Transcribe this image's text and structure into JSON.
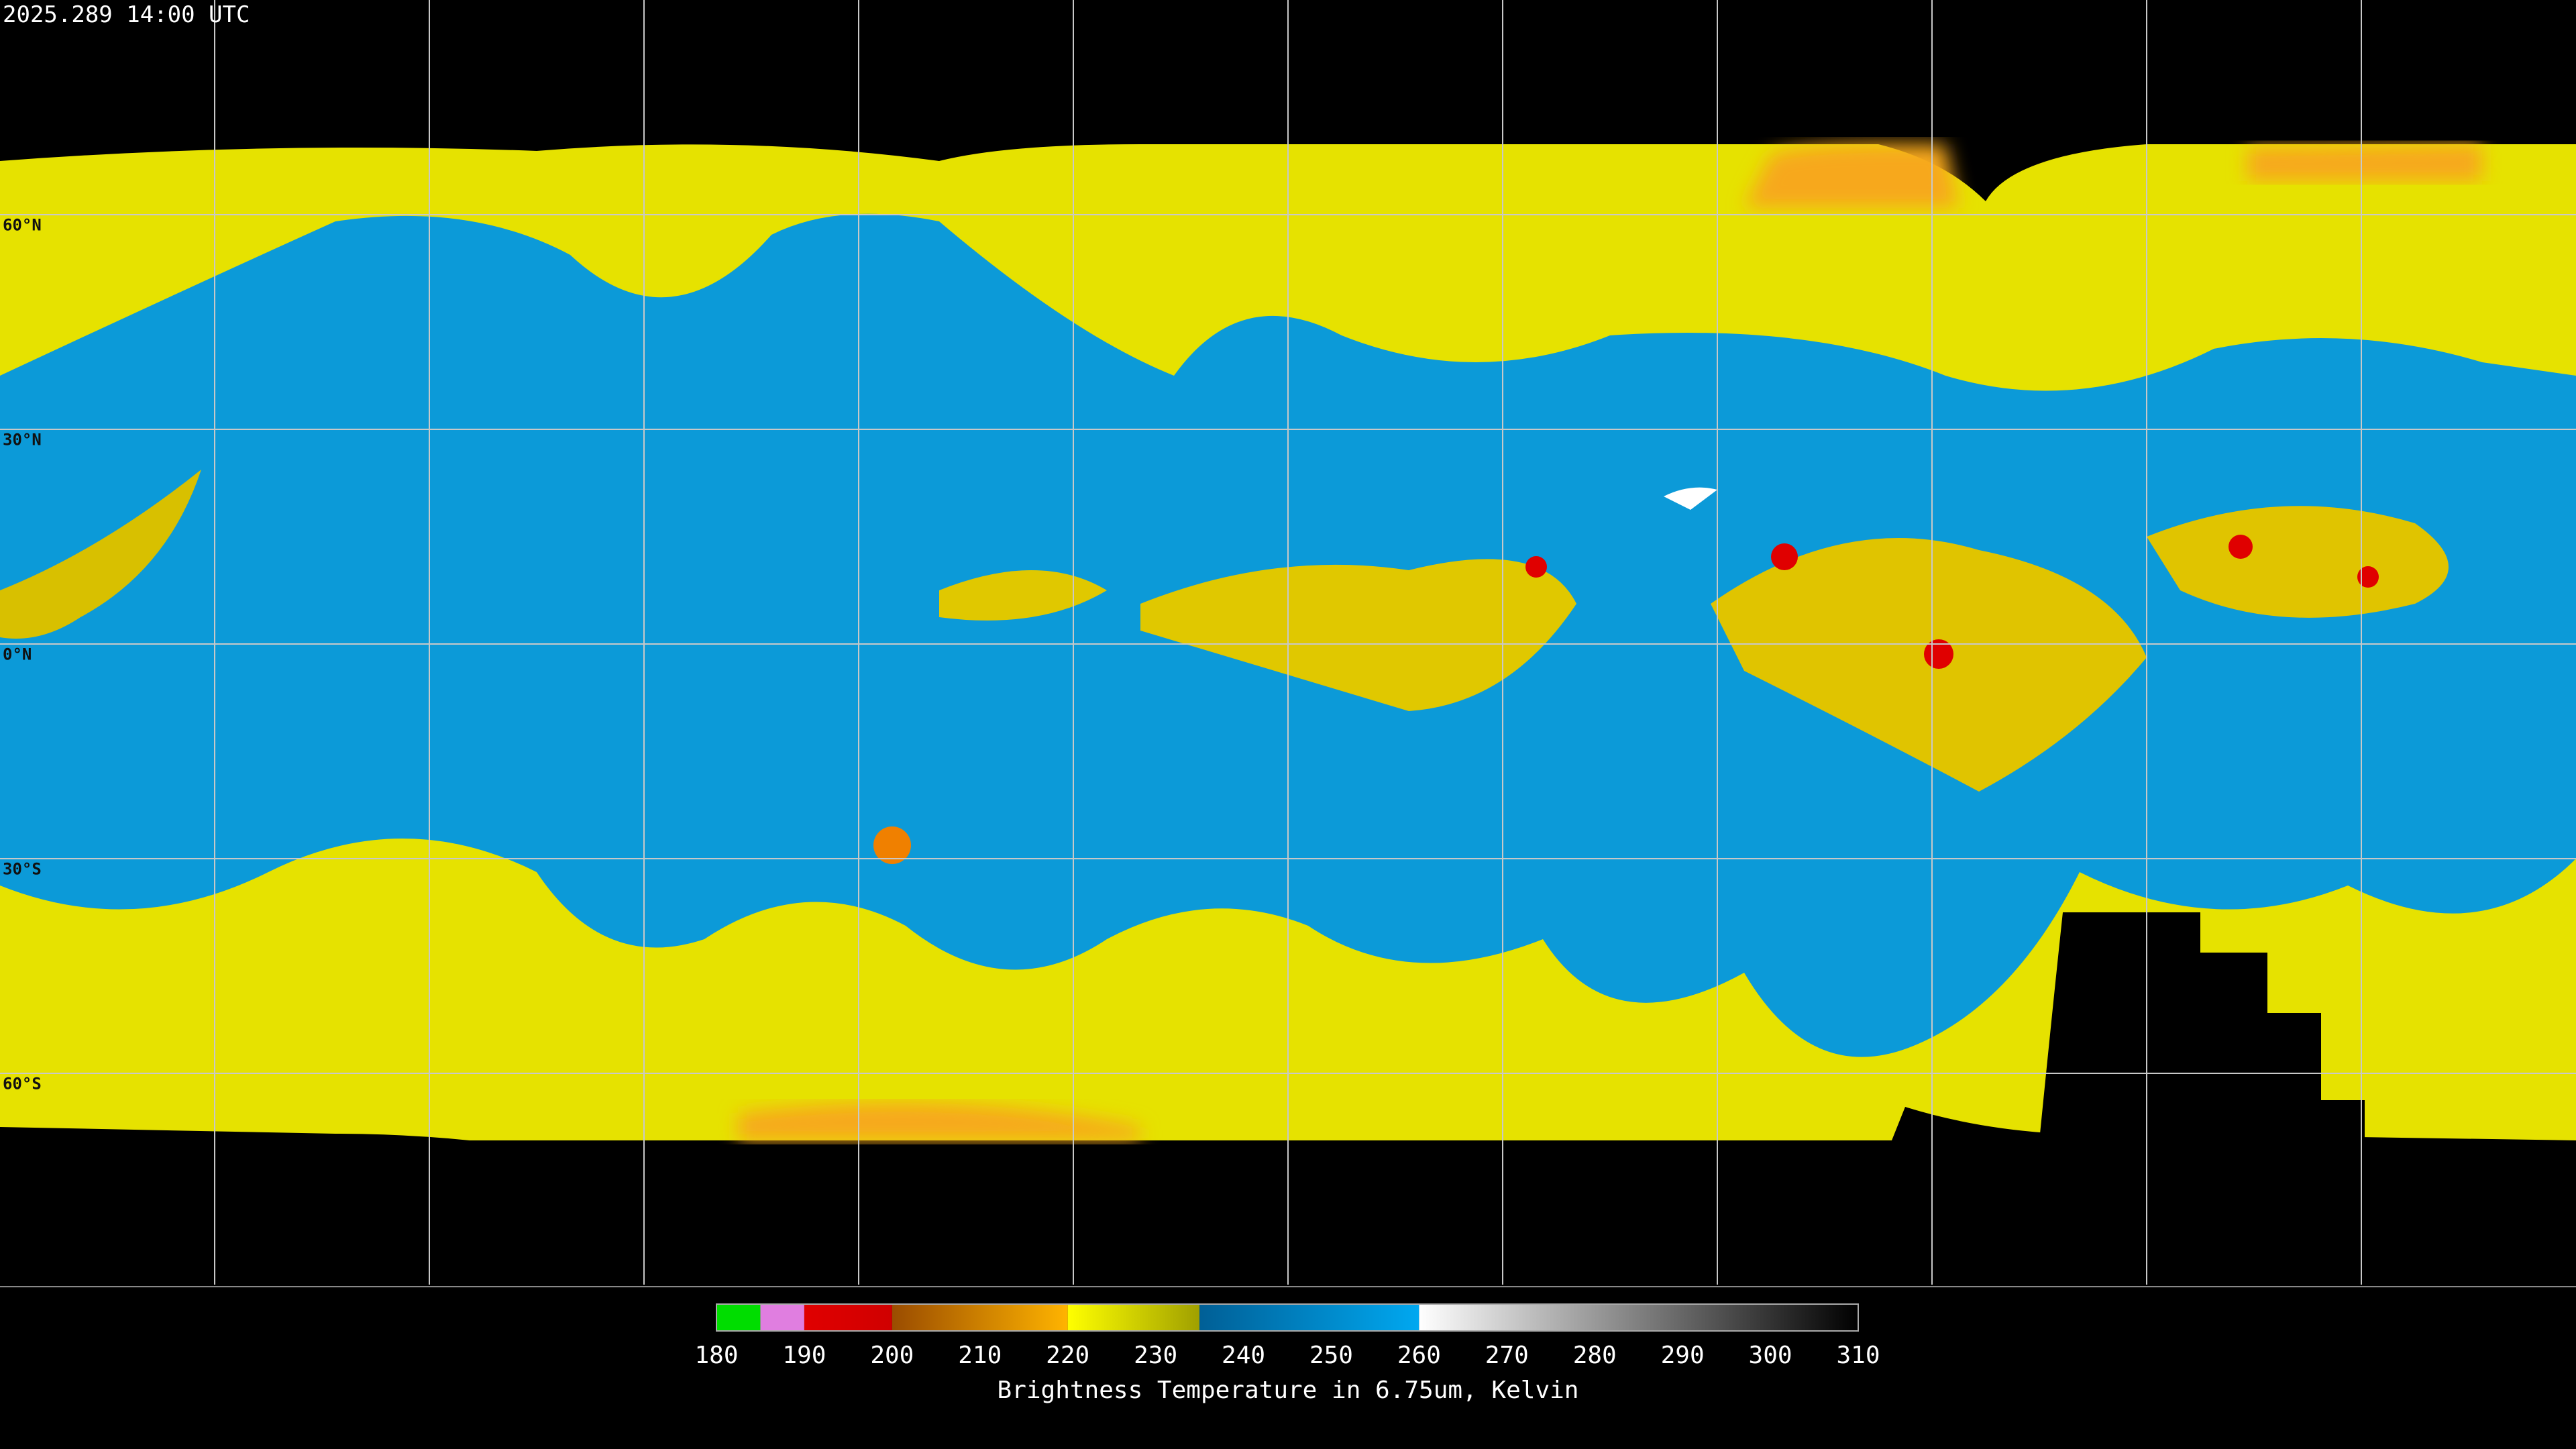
{
  "timestamp": "2025.289 14:00 UTC",
  "grid": {
    "lat_labels": [
      "60°N",
      "30°N",
      "0°N",
      "30°S",
      "60°S"
    ]
  },
  "colorbar": {
    "range": [
      180,
      310
    ],
    "ticks": [
      180,
      190,
      200,
      210,
      220,
      230,
      240,
      250,
      260,
      270,
      280,
      290,
      300,
      310
    ],
    "label": "Brightness Temperature in 6.75um, Kelvin",
    "segments": [
      {
        "from": 180,
        "to": 185,
        "colors": [
          "#00dd00",
          "#00dd00"
        ]
      },
      {
        "from": 185,
        "to": 190,
        "colors": [
          "#e07ee0",
          "#e07ee0"
        ]
      },
      {
        "from": 190,
        "to": 200,
        "colors": [
          "#e00000",
          "#d00000"
        ]
      },
      {
        "from": 200,
        "to": 220,
        "colors": [
          "#9a4c00",
          "#ffb400"
        ]
      },
      {
        "from": 220,
        "to": 235,
        "colors": [
          "#ffff00",
          "#a0a000"
        ]
      },
      {
        "from": 235,
        "to": 260,
        "colors": [
          "#005f96",
          "#00a8f0"
        ]
      },
      {
        "from": 260,
        "to": 310,
        "colors": [
          "#ffffff",
          "#000000"
        ]
      }
    ]
  }
}
